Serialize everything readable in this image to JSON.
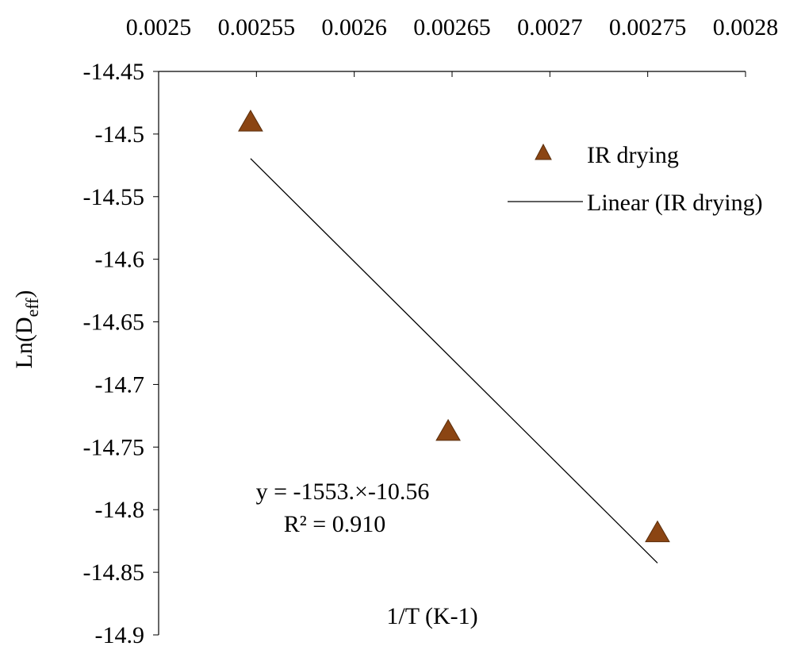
{
  "chart_data": {
    "type": "scatter",
    "xlabel": "1/T (K-1)",
    "ylabel_main": "Ln(D",
    "ylabel_sub": "eff",
    "ylabel_close": ")",
    "xlim": [
      0.0025,
      0.0028
    ],
    "ylim": [
      -14.9,
      -14.45
    ],
    "x_ticks": [
      0.0025,
      0.00255,
      0.0026,
      0.00265,
      0.0027,
      0.00275,
      0.0028
    ],
    "x_tick_labels": [
      "0.0025",
      "0.00255",
      "0.0026",
      "0.00265",
      "0.0027",
      "0.00275",
      "0.0028"
    ],
    "y_ticks": [
      -14.45,
      -14.5,
      -14.55,
      -14.6,
      -14.65,
      -14.7,
      -14.75,
      -14.8,
      -14.85,
      -14.9
    ],
    "y_tick_labels": [
      "-14.45",
      "-14.5",
      "-14.55",
      "-14.6",
      "-14.65",
      "-14.7",
      "-14.75",
      "-14.8",
      "-14.85",
      "-14.9"
    ],
    "x_axis_position": "top",
    "grid": false,
    "legend_position": "top-right",
    "series": [
      {
        "name": "IR drying",
        "marker": "triangle",
        "color": "#8B4513",
        "x": [
          0.002547,
          0.002648,
          0.002755
        ],
        "y": [
          -14.49,
          -14.737,
          -14.818
        ]
      },
      {
        "name": "Linear (IR drying)",
        "line": true,
        "color": "#000000",
        "x": [
          0.002547,
          0.002755
        ],
        "y": [
          -14.5196,
          -14.8426
        ]
      }
    ],
    "annotation": {
      "equation": "y = -1553.×-10.56",
      "r2": "R² = 0.910"
    }
  }
}
